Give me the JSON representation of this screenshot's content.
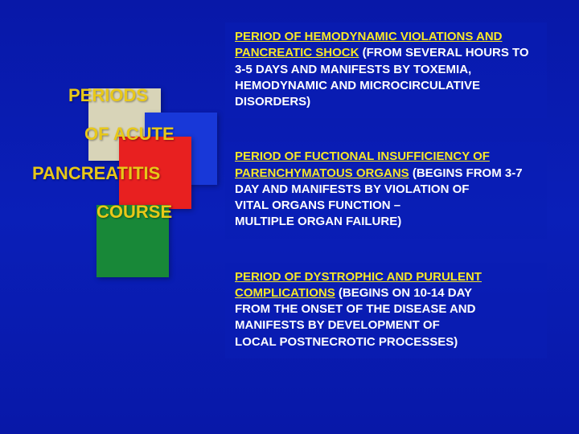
{
  "title": {
    "line1": "PERIODS",
    "line2": "OF ACUTE",
    "line3": "PANCREATITIS",
    "line4": "COURSE"
  },
  "squares": {
    "beige": "#d8d4b8",
    "blue": "#1838d8",
    "red": "#e82020",
    "green": "#188838"
  },
  "periods": [
    {
      "head": "PERIOD OF HEMODYNAMIC VIOLATIONS AND PANCREATIC SHOCK",
      "body": "(FROM SEVERAL HOURS TO 3-5 DAYS AND MANIFESTS BY TOXEMIA, HEMODYNAMIC AND MICROCIRCULATIVE DISORDERS)"
    },
    {
      "head": "PERIOD OF FUCTIONAL INSUFFICIENCY OF PARENCHYMATOUS ORGANS",
      "body": "(BEGINS FROM 3-7 DAY AND MANIFESTS BY VIOLATION OF\nVITAL ORGANS FUNCTION –\nMULTIPLE ORGAN FAILURE)"
    },
    {
      "head": "PERIOD OF DYSTROPHIC AND PURULENT COMPLICATIONS",
      "body": "(BEGINS ON 10-14 DAY\nFROM THE ONSET OF THE DISEASE AND MANIFESTS BY DEVELOPMENT OF\nLOCAL POSTNECROTIC PROCESSES)"
    }
  ],
  "style": {
    "title_color": "#e8c818",
    "head_color": "#f8e828",
    "body_color": "#ffffff",
    "block_bg": "rgba(10,30,180,0.55)",
    "page_bg": "#0818a8",
    "title_fontsize": 22,
    "body_fontsize": 15
  }
}
